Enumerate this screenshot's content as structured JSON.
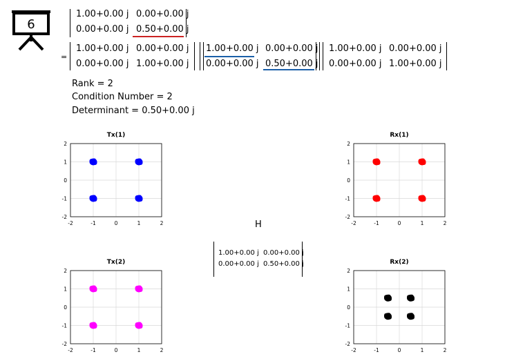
{
  "slide": {
    "number": "6",
    "icon": "presentation-board-icon"
  },
  "top_matrix": {
    "rows": [
      [
        "1.00+0.00 j",
        "0.00+0.00 j"
      ],
      [
        "0.00+0.00 j",
        "0.50+0.00 j"
      ]
    ],
    "highlight_color": "#cc2222"
  },
  "equals_sign": "=",
  "svd": {
    "U": [
      [
        "1.00+0.00 j",
        "0.00+0.00 j"
      ],
      [
        "0.00+0.00 j",
        "1.00+0.00 j"
      ]
    ],
    "S": [
      [
        "1.00+0.00 j",
        "0.00+0.00 j"
      ],
      [
        "0.00+0.00 j",
        "0.50+0.00 j"
      ]
    ],
    "V": [
      [
        "1.00+0.00 j",
        "0.00+0.00 j"
      ],
      [
        "0.00+0.00 j",
        "1.00+0.00 j"
      ]
    ],
    "highlight_color": "#1a5fa8"
  },
  "stats": {
    "rank": "Rank = 2",
    "condition": "Condition Number = 2",
    "determinant": "Determinant = 0.50+0.00 j"
  },
  "channel": {
    "label": "H",
    "rows": [
      [
        "1.00+0.00 j",
        "0.00+0.00 j"
      ],
      [
        "0.00+0.00 j",
        "0.50+0.00 j"
      ]
    ]
  },
  "chart_data": [
    {
      "type": "scatter",
      "title": "Tx(1)",
      "color": "#0000ff",
      "xlim": [
        -2,
        2
      ],
      "ylim": [
        -2,
        2
      ],
      "xticks": [
        -2,
        -1,
        0,
        1,
        2
      ],
      "yticks": [
        -2,
        -1,
        0,
        1,
        2
      ],
      "grid": true,
      "points": [
        [
          -1,
          1
        ],
        [
          1,
          1
        ],
        [
          -1,
          -1
        ],
        [
          1,
          -1
        ]
      ]
    },
    {
      "type": "scatter",
      "title": "Rx(1)",
      "color": "#ff0000",
      "xlim": [
        -2,
        2
      ],
      "ylim": [
        -2,
        2
      ],
      "xticks": [
        -2,
        -1,
        0,
        1,
        2
      ],
      "yticks": [
        -2,
        -1,
        0,
        1,
        2
      ],
      "grid": true,
      "points": [
        [
          -1,
          1
        ],
        [
          1,
          1
        ],
        [
          -1,
          -1
        ],
        [
          1,
          -1
        ]
      ]
    },
    {
      "type": "scatter",
      "title": "Tx(2)",
      "color": "#ff00ff",
      "xlim": [
        -2,
        2
      ],
      "ylim": [
        -2,
        2
      ],
      "xticks": [
        -2,
        -1,
        0,
        1,
        2
      ],
      "yticks": [
        -2,
        -1,
        0,
        1,
        2
      ],
      "grid": true,
      "points": [
        [
          -1,
          1
        ],
        [
          1,
          1
        ],
        [
          -1,
          -1
        ],
        [
          1,
          -1
        ]
      ]
    },
    {
      "type": "scatter",
      "title": "Rx(2)",
      "color": "#000000",
      "xlim": [
        -2,
        2
      ],
      "ylim": [
        -2,
        2
      ],
      "xticks": [
        -2,
        -1,
        0,
        1,
        2
      ],
      "yticks": [
        -2,
        -1,
        0,
        1,
        2
      ],
      "grid": true,
      "points": [
        [
          -0.5,
          0.5
        ],
        [
          0.5,
          0.5
        ],
        [
          -0.5,
          -0.5
        ],
        [
          0.5,
          -0.5
        ]
      ]
    }
  ]
}
